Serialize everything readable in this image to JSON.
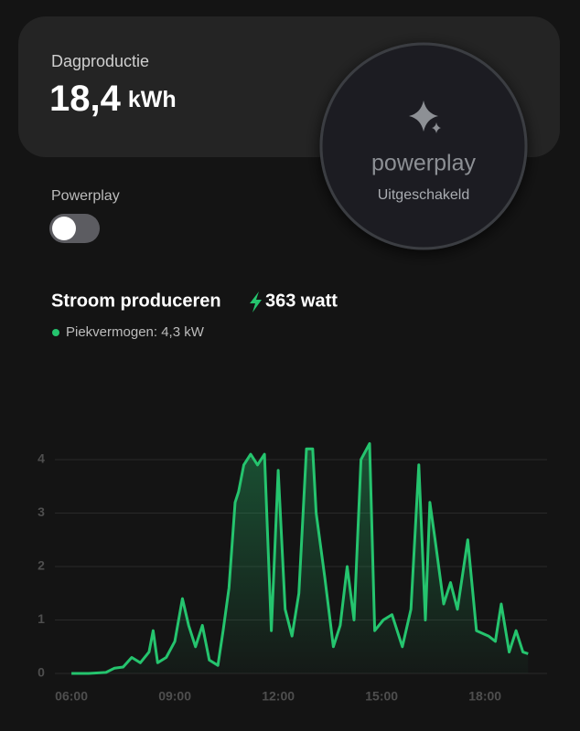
{
  "header": {
    "label": "Dagproductie",
    "value": "18,4",
    "unit": "kWh"
  },
  "powerplay": {
    "label": "Powerplay",
    "brand": "powerplay",
    "status": "Uitgeschakeld"
  },
  "chart_data": {
    "type": "line",
    "title": "Stroom produceren",
    "current": "363 watt",
    "subtitle": "Piekvermogen: 4,3 kW",
    "x": [
      6,
      6.5,
      7,
      7.25,
      7.5,
      7.75,
      8,
      8.25,
      8.37,
      8.5,
      8.75,
      9,
      9.22,
      9.4,
      9.6,
      9.8,
      10,
      10.25,
      10.4,
      10.57,
      10.75,
      10.85,
      11.0,
      11.2,
      11.4,
      11.6,
      11.8,
      12.0,
      12.2,
      12.4,
      12.6,
      12.82,
      13.0,
      13.1,
      13.35,
      13.6,
      13.8,
      14.0,
      14.2,
      14.4,
      14.65,
      14.8,
      15.05,
      15.3,
      15.6,
      15.85,
      16.08,
      16.27,
      16.4,
      16.55,
      16.8,
      17.0,
      17.2,
      17.5,
      17.75,
      18.1,
      18.3,
      18.47,
      18.7,
      18.9,
      19.1,
      19.25
    ],
    "series": [
      {
        "color": "#25c46e",
        "values": [
          0,
          0,
          0.02,
          0.1,
          0.12,
          0.3,
          0.2,
          0.4,
          0.8,
          0.2,
          0.3,
          0.6,
          1.4,
          0.9,
          0.5,
          0.9,
          0.25,
          0.15,
          0.8,
          1.6,
          3.2,
          3.4,
          3.9,
          4.1,
          3.9,
          4.1,
          0.8,
          3.8,
          1.2,
          0.7,
          1.5,
          4.2,
          4.2,
          3.0,
          1.8,
          0.5,
          0.9,
          2.0,
          1.0,
          4.0,
          4.3,
          0.8,
          1.0,
          1.1,
          0.5,
          1.2,
          3.9,
          1.0,
          3.2,
          2.5,
          1.3,
          1.7,
          1.2,
          2.5,
          0.8,
          0.7,
          0.6,
          1.3,
          0.4,
          0.8,
          0.4,
          0.37
        ]
      }
    ],
    "xlim": [
      5.52,
      19.8
    ],
    "ylim": [
      -0.15,
      4.35
    ],
    "xticks": [
      {
        "value": 6,
        "label": "06:00"
      },
      {
        "value": 9,
        "label": "09:00"
      },
      {
        "value": 12,
        "label": "12:00"
      },
      {
        "value": 15,
        "label": "15:00"
      },
      {
        "value": 18,
        "label": "18:00"
      }
    ],
    "yticks": [
      0,
      1,
      2,
      3,
      4
    ],
    "grid": true
  }
}
